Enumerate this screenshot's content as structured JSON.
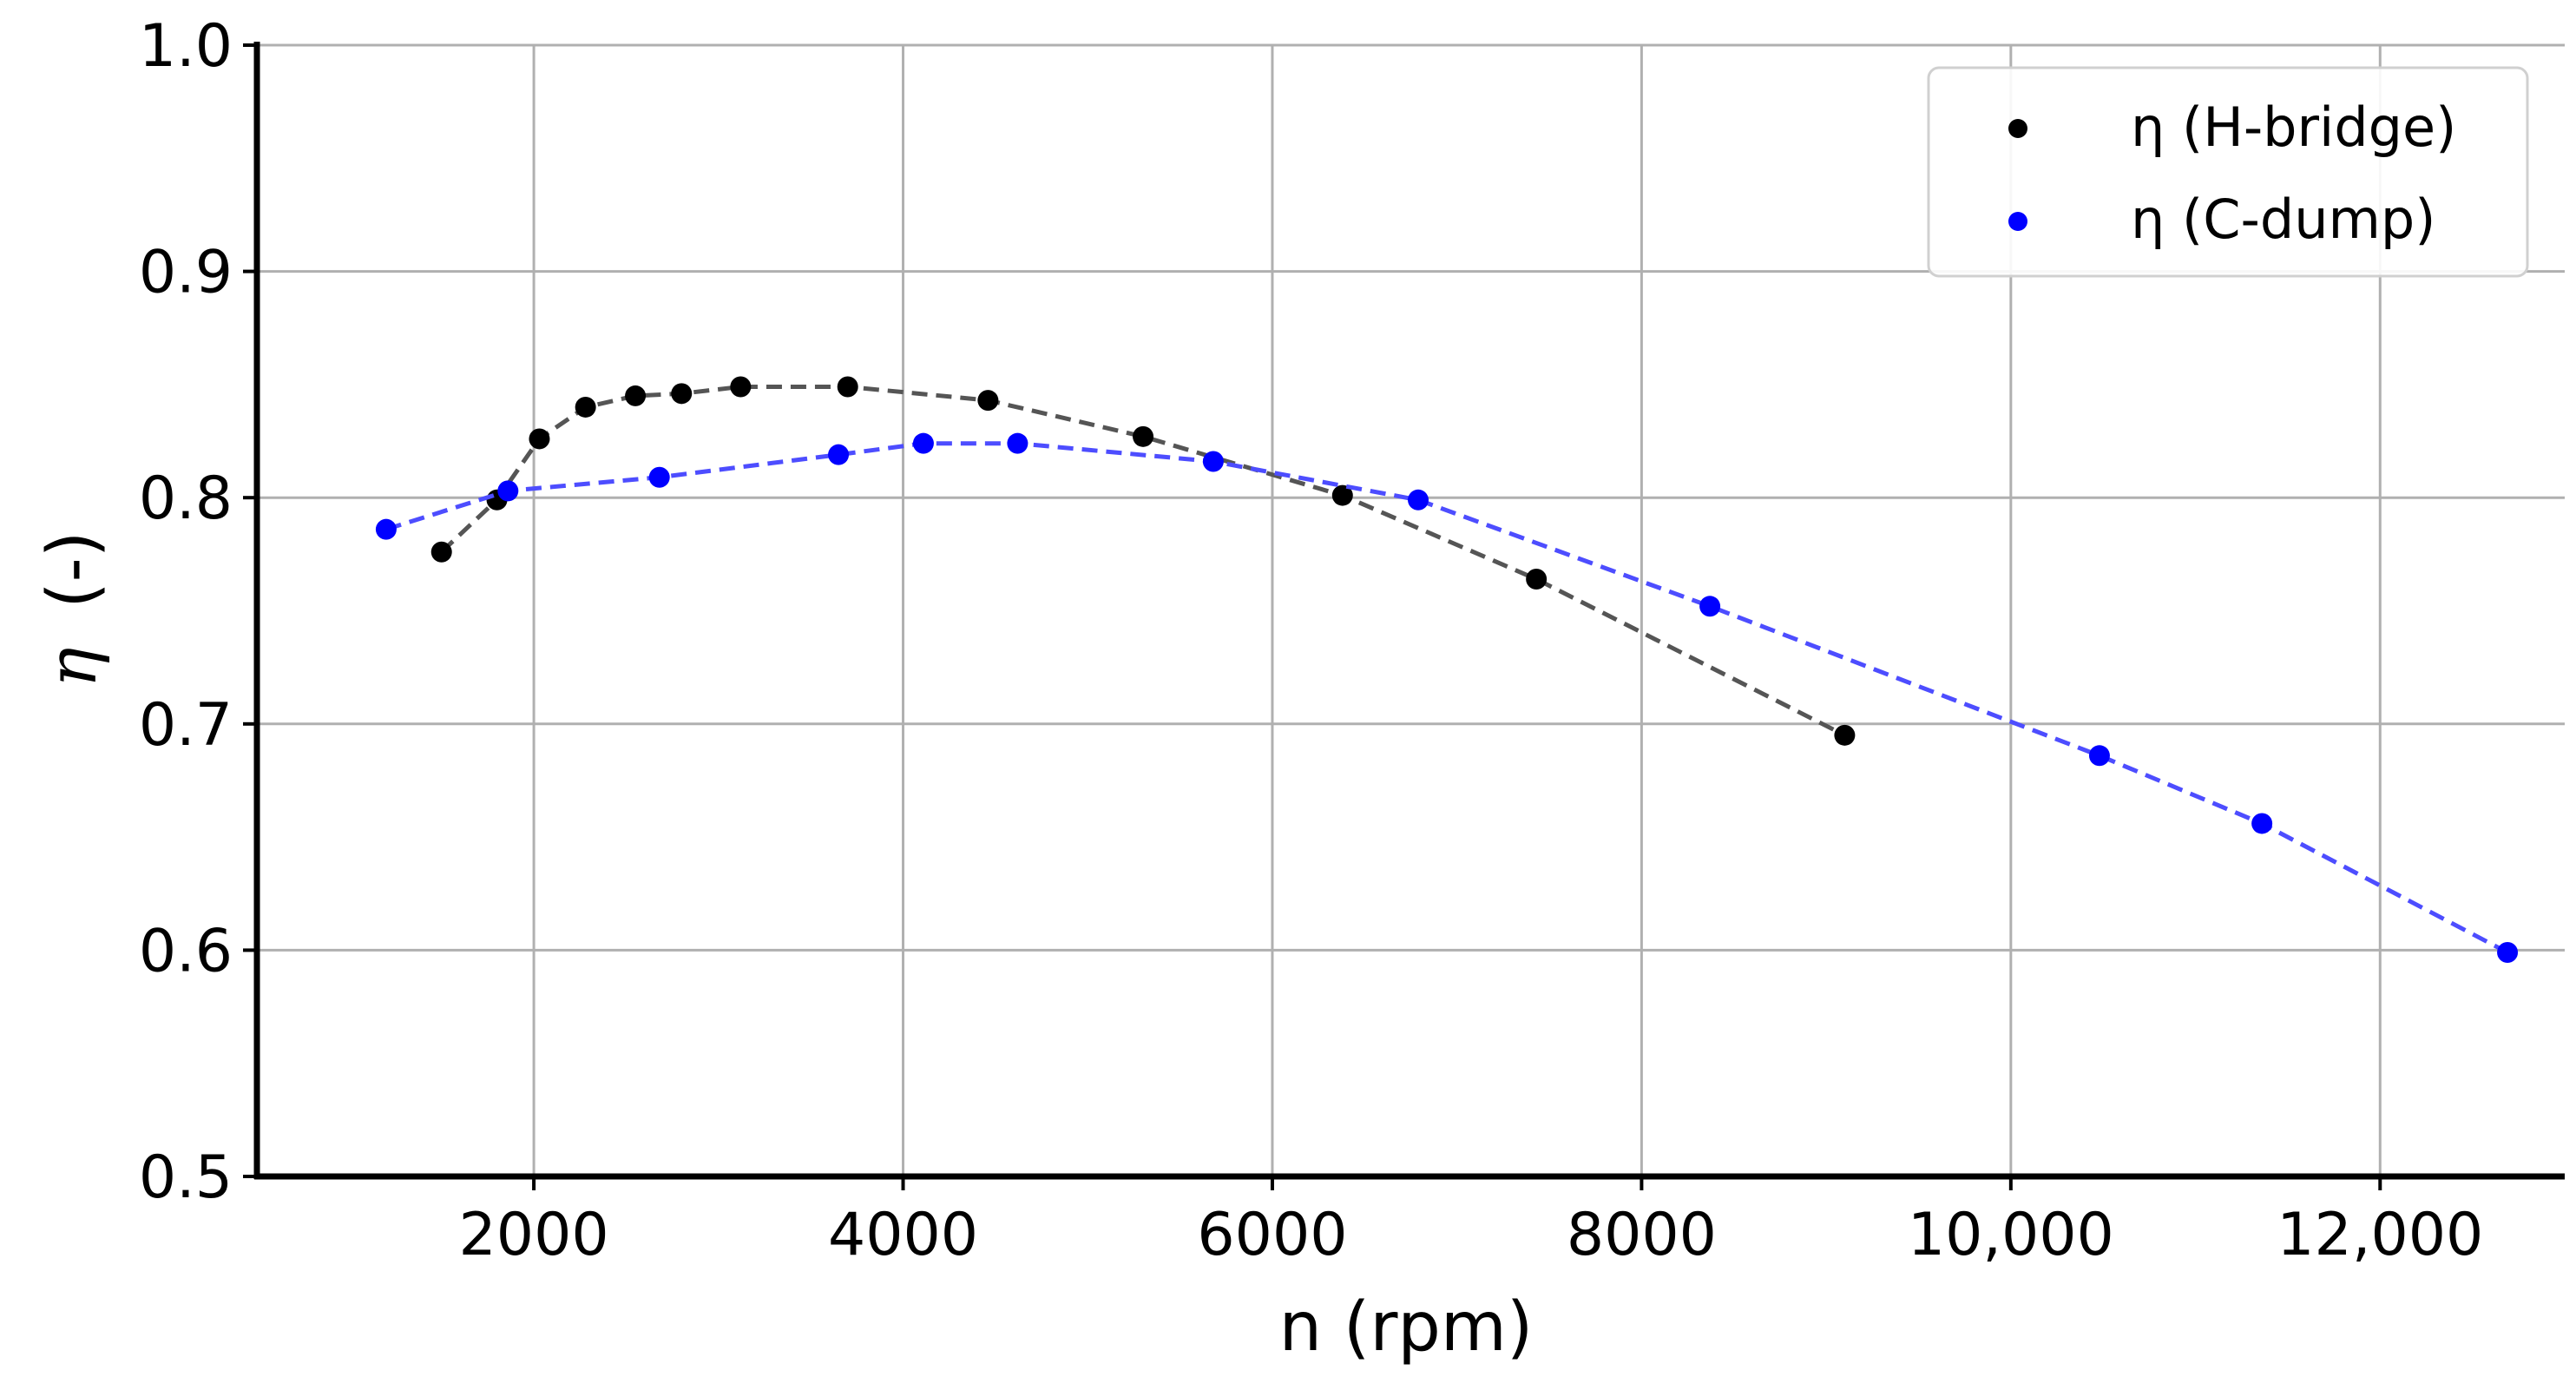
{
  "chart_data": {
    "type": "line",
    "title": "",
    "xlabel": "n (rpm)",
    "ylabel_symbol": "η",
    "ylabel_unit": "(-)",
    "xlim": [
      500,
      13000
    ],
    "ylim": [
      0.5,
      1.0
    ],
    "grid": true,
    "xticks": [
      2000,
      4000,
      6000,
      8000,
      10000,
      12000
    ],
    "xtick_labels": [
      "2000",
      "4000",
      "6000",
      "8000",
      "10,000",
      "12,000"
    ],
    "yticks": [
      0.5,
      0.6,
      0.7,
      0.8,
      0.9,
      1.0
    ],
    "ytick_labels": [
      "0.5",
      "0.6",
      "0.7",
      "0.8",
      "0.9",
      "1.0"
    ],
    "legend_position": "top-right",
    "series": [
      {
        "name": "η (H-bridge)",
        "color": "#000000",
        "line_color": "#555555",
        "marker": "circle",
        "line_style": "dashed",
        "x": [
          1500,
          1800,
          2030,
          2280,
          2550,
          2800,
          3120,
          3700,
          4460,
          5300,
          6380,
          7430,
          9100
        ],
        "y": [
          0.776,
          0.799,
          0.826,
          0.84,
          0.845,
          0.846,
          0.849,
          0.849,
          0.843,
          0.827,
          0.801,
          0.764,
          0.695
        ]
      },
      {
        "name": "η (C-dump)",
        "color": "#0000ff",
        "line_color": "#4d4dff",
        "marker": "circle",
        "line_style": "dashed",
        "x": [
          1200,
          1860,
          2680,
          3650,
          4110,
          4620,
          5680,
          6790,
          8370,
          10480,
          11360,
          12690
        ],
        "y": [
          0.786,
          0.803,
          0.809,
          0.819,
          0.824,
          0.824,
          0.816,
          0.799,
          0.752,
          0.686,
          0.656,
          0.599
        ]
      }
    ]
  }
}
